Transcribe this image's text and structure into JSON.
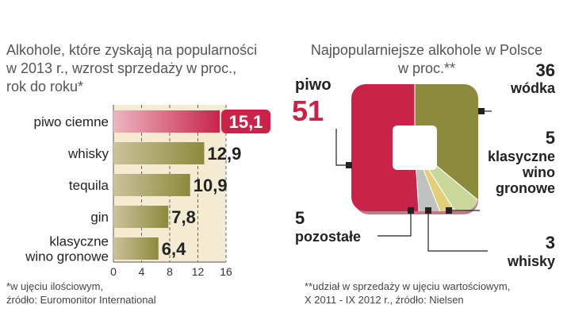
{
  "left": {
    "title_lines": [
      "Alkohole, które zyskają na popularności",
      "w 2013 r., wzrost sprzedaży w proc.,",
      "rok do roku*"
    ],
    "footnote_lines": [
      "*w ujęciu ilościowym,",
      "źródło: Euromonitor International"
    ]
  },
  "right": {
    "title_lines": [
      "Najpopularniejsze alkohole w Polsce",
      "w proc.**"
    ],
    "footnote_lines": [
      "**udział w sprzedaży w ujęciu wartościowym,",
      "X 2011 - IX 2012 r., źródło: Nielsen"
    ]
  },
  "colors": {
    "highlight": "#c8244a",
    "olive": "#8c8a3c",
    "panel": "#f3ecd3"
  },
  "chart_data": [
    {
      "type": "bar",
      "orientation": "horizontal",
      "categories": [
        "piwo ciemne",
        "whisky",
        "tequila",
        "gin",
        "klasyczne wino gronowe"
      ],
      "category_lines": [
        [
          "piwo ciemne"
        ],
        [
          "whisky"
        ],
        [
          "tequila"
        ],
        [
          "gin"
        ],
        [
          "klasyczne",
          "wino gronowe"
        ]
      ],
      "values": [
        15.1,
        12.9,
        10.9,
        7.8,
        6.4
      ],
      "value_labels": [
        "15,1",
        "12,9",
        "10,9",
        "7,8",
        "6,4"
      ],
      "xticks": [
        "0",
        "4",
        "8",
        "12",
        "16"
      ],
      "xlim": [
        0,
        16
      ],
      "grid": true
    },
    {
      "type": "pie",
      "labels": [
        "wódka",
        "klasyczne wino gronowe",
        "whisky",
        "pozostałe",
        "piwo"
      ],
      "label_lines": [
        [
          "wódka"
        ],
        [
          "klasyczne",
          "wino",
          "gronowe"
        ],
        [
          "whisky"
        ],
        [
          "pozostałe"
        ],
        [
          "piwo"
        ]
      ],
      "values": [
        36,
        5,
        3,
        5,
        51
      ],
      "value_labels": [
        "36",
        "5",
        "3",
        "5",
        "51"
      ],
      "colors": [
        "#8c8a3c",
        "#c9d79a",
        "#e3cf7a",
        "#bfc2c0",
        "#c8244a"
      ]
    }
  ]
}
